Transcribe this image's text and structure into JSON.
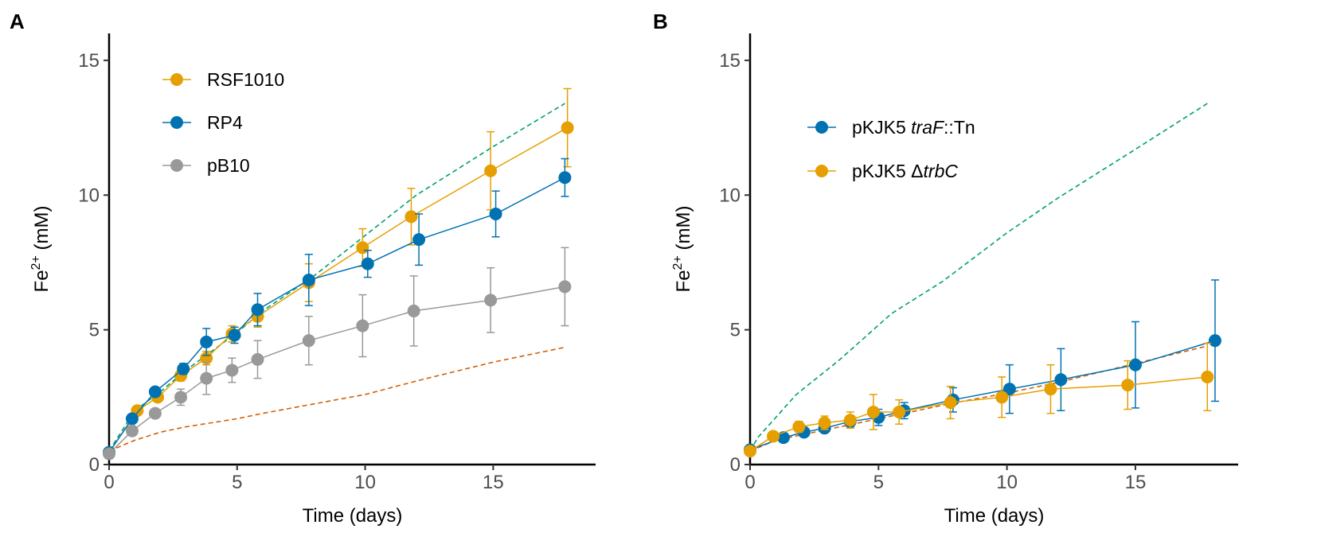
{
  "chart_data": [
    {
      "panel": "A",
      "type": "line",
      "xlabel": "Time (days)",
      "ylabel": {
        "base": "Fe",
        "sup": "2+",
        "rest": " (mM)"
      },
      "xlim": [
        0,
        19
      ],
      "ylim": [
        0,
        16
      ],
      "xticks": [
        0,
        5,
        10,
        15
      ],
      "yticks": [
        0,
        5,
        10,
        15
      ],
      "legend_position": "top-left",
      "series": [
        {
          "name": "RSF1010",
          "label_parts": [
            {
              "t": "RSF1010",
              "i": false
            }
          ],
          "color": "#E69F00",
          "x": [
            0,
            1.1,
            1.9,
            2.8,
            3.8,
            4.8,
            5.8,
            7.8,
            9.9,
            11.8,
            14.9,
            17.9
          ],
          "y": [
            0.45,
            2.0,
            2.5,
            3.3,
            3.95,
            4.85,
            5.5,
            6.75,
            8.05,
            9.2,
            10.9,
            12.5
          ],
          "err": [
            0.1,
            0.12,
            0.15,
            0.2,
            0.25,
            0.3,
            0.4,
            0.7,
            0.7,
            1.05,
            1.45,
            1.45
          ]
        },
        {
          "name": "RP4",
          "label_parts": [
            {
              "t": "RP4",
              "i": false
            }
          ],
          "color": "#0072B2",
          "x": [
            0,
            0.9,
            1.8,
            2.9,
            3.8,
            4.9,
            5.8,
            7.8,
            10.1,
            12.1,
            15.1,
            17.8
          ],
          "y": [
            0.45,
            1.7,
            2.7,
            3.55,
            4.55,
            4.8,
            5.75,
            6.85,
            7.45,
            8.35,
            9.3,
            10.65
          ],
          "err": [
            0.1,
            0.12,
            0.15,
            0.2,
            0.5,
            0.3,
            0.6,
            0.95,
            0.5,
            0.95,
            0.85,
            0.7
          ]
        },
        {
          "name": "pB10",
          "label_parts": [
            {
              "t": "pB10",
              "i": false
            }
          ],
          "color": "#999999",
          "x": [
            0,
            0.9,
            1.8,
            2.8,
            3.8,
            4.8,
            5.8,
            7.8,
            9.9,
            11.9,
            14.9,
            17.8
          ],
          "y": [
            0.4,
            1.25,
            1.9,
            2.5,
            3.2,
            3.5,
            3.9,
            4.6,
            5.15,
            5.7,
            6.1,
            6.6
          ],
          "err": [
            0.08,
            0.1,
            0.15,
            0.3,
            0.6,
            0.45,
            0.7,
            0.9,
            1.15,
            1.3,
            1.2,
            1.45
          ]
        }
      ],
      "reference_lines": [
        {
          "name": "green-dashed",
          "color": "#009E73",
          "x": [
            0,
            1,
            2,
            3,
            4,
            5,
            6,
            8,
            10,
            12,
            15,
            17.8
          ],
          "y": [
            0.5,
            2.0,
            2.7,
            3.5,
            4.2,
            4.9,
            5.7,
            7.0,
            8.5,
            10.0,
            11.8,
            13.4
          ]
        },
        {
          "name": "orange-dashed",
          "color": "#D55E00",
          "x": [
            0,
            1,
            2,
            3,
            4,
            5,
            6,
            8,
            10,
            12,
            15,
            17.8
          ],
          "y": [
            0.5,
            0.9,
            1.2,
            1.4,
            1.55,
            1.7,
            1.9,
            2.25,
            2.6,
            3.1,
            3.8,
            4.35
          ]
        }
      ]
    },
    {
      "panel": "B",
      "type": "line",
      "xlabel": "Time (days)",
      "ylabel": {
        "base": "Fe",
        "sup": "2+",
        "rest": " (mM)"
      },
      "xlim": [
        0,
        19
      ],
      "ylim": [
        0,
        16
      ],
      "xticks": [
        0,
        5,
        10,
        15
      ],
      "yticks": [
        0,
        5,
        10,
        15
      ],
      "legend_position": "top-left",
      "series": [
        {
          "name": "pKJK5 traF::Tn",
          "label_parts": [
            {
              "t": "pKJK5 ",
              "i": false
            },
            {
              "t": "traF",
              "i": true
            },
            {
              "t": "::Tn",
              "i": false
            }
          ],
          "color": "#0072B2",
          "x": [
            0,
            1.3,
            2.1,
            2.9,
            3.9,
            5.0,
            6.0,
            7.9,
            10.1,
            12.1,
            15.0,
            18.1
          ],
          "y": [
            0.55,
            1.0,
            1.2,
            1.35,
            1.6,
            1.75,
            2.0,
            2.4,
            2.8,
            3.15,
            3.7,
            4.6
          ],
          "err": [
            0.1,
            0.12,
            0.15,
            0.15,
            0.2,
            0.3,
            0.3,
            0.45,
            0.9,
            1.15,
            1.6,
            2.25
          ]
        },
        {
          "name": "pKJK5 ΔtrbC",
          "label_parts": [
            {
              "t": "pKJK5 Δ",
              "i": false
            },
            {
              "t": "trbC",
              "i": true
            }
          ],
          "color": "#E69F00",
          "x": [
            0,
            0.9,
            1.9,
            2.9,
            3.9,
            4.8,
            5.8,
            7.8,
            9.8,
            11.7,
            14.7,
            17.8
          ],
          "y": [
            0.5,
            1.05,
            1.4,
            1.55,
            1.65,
            1.95,
            1.95,
            2.3,
            2.5,
            2.8,
            2.95,
            3.25
          ],
          "err": [
            0.1,
            0.15,
            0.2,
            0.25,
            0.3,
            0.65,
            0.45,
            0.6,
            0.75,
            0.9,
            0.9,
            1.25
          ]
        }
      ],
      "reference_lines": [
        {
          "name": "green-dashed",
          "color": "#009E73",
          "x": [
            0,
            0.3,
            1.8,
            3.5,
            5.5,
            7.5,
            10,
            12,
            15,
            17.8
          ],
          "y": [
            0.5,
            1.0,
            2.6,
            3.9,
            5.6,
            6.8,
            8.6,
            9.9,
            11.7,
            13.4
          ]
        },
        {
          "name": "orange-dashed",
          "color": "#D55E00",
          "x": [
            0,
            1,
            2,
            3,
            4,
            5,
            6,
            8,
            10,
            12,
            15,
            17.8
          ],
          "y": [
            0.5,
            0.9,
            1.1,
            1.3,
            1.5,
            1.7,
            1.9,
            2.3,
            2.65,
            3.05,
            3.75,
            4.4
          ]
        }
      ]
    }
  ]
}
